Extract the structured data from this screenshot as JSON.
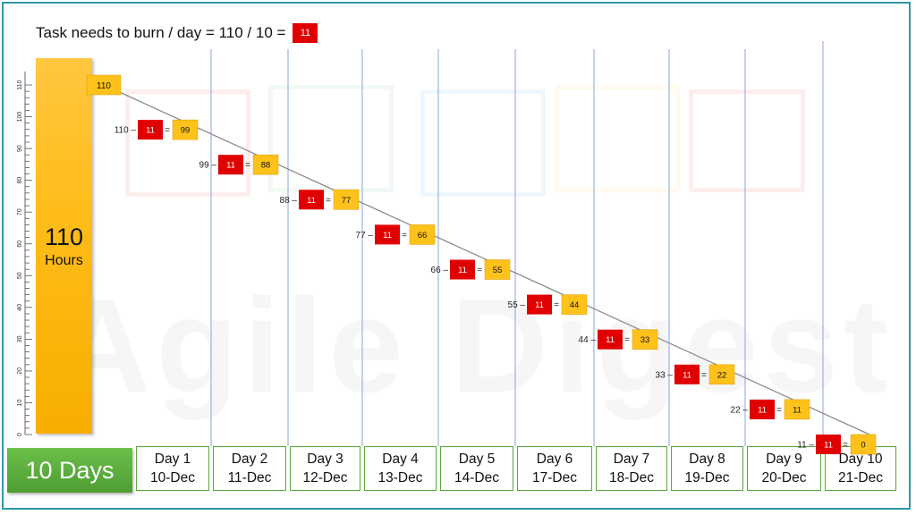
{
  "header": {
    "formula": "Task needs to burn / day = 110 / 10 =",
    "rate": "11"
  },
  "total": {
    "value": "110",
    "unit": "Hours"
  },
  "duration_label": "10 Days",
  "watermark": "Agile Digest",
  "colors": {
    "burn": "#e00000",
    "remaining": "#ffc21a",
    "frame": "#2e9aa8",
    "days": "#5aa83a",
    "gridline": "#8aa6d6"
  },
  "chart_data": {
    "type": "line",
    "title": "",
    "ylim": [
      0,
      110
    ],
    "y_ticks": [
      0,
      10,
      20,
      30,
      40,
      50,
      60,
      70,
      80,
      90,
      100,
      110
    ],
    "start_label": "110",
    "categories": [
      {
        "day": "Day 1",
        "date": "10-Dec"
      },
      {
        "day": "Day 2",
        "date": "11-Dec"
      },
      {
        "day": "Day 3",
        "date": "12-Dec"
      },
      {
        "day": "Day 4",
        "date": "13-Dec"
      },
      {
        "day": "Day 5",
        "date": "14-Dec"
      },
      {
        "day": "Day 6",
        "date": "17-Dec"
      },
      {
        "day": "Day 7",
        "date": "18-Dec"
      },
      {
        "day": "Day 8",
        "date": "19-Dec"
      },
      {
        "day": "Day 9",
        "date": "20-Dec"
      },
      {
        "day": "Day 10",
        "date": "21-Dec"
      }
    ],
    "series": [
      {
        "start": [
          110,
          99,
          88,
          77,
          66,
          55,
          44,
          33,
          22,
          11
        ],
        "burn": [
          11,
          11,
          11,
          11,
          11,
          11,
          11,
          11,
          11,
          11
        ],
        "remaining": [
          99,
          88,
          77,
          66,
          55,
          44,
          33,
          22,
          11,
          0
        ]
      }
    ]
  }
}
